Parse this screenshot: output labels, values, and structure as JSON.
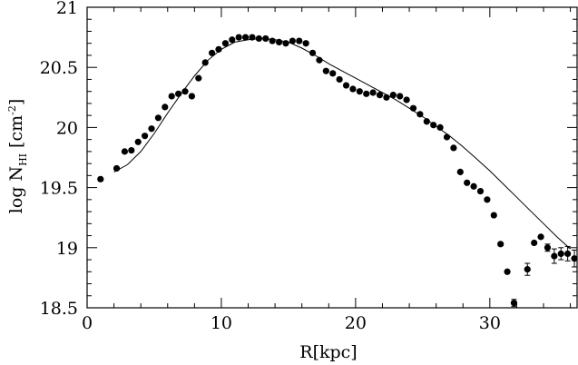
{
  "chart_data": {
    "type": "scatter",
    "xlabel": "R[kpc]",
    "ylabel": {
      "main": "log N",
      "subscript": "HI",
      "unit_open": "[cm",
      "exponent": "-2",
      "unit_close": "]"
    },
    "xlim": [
      0,
      36.5
    ],
    "ylim": [
      18.5,
      21
    ],
    "xticks": [
      0,
      10,
      20,
      30
    ],
    "yticks": [
      18.5,
      19,
      19.5,
      20,
      20.5,
      21
    ],
    "ytick_labels": [
      "18.5",
      "19",
      "19.5",
      "20",
      "20.5",
      "21"
    ],
    "grid": false,
    "colors": {
      "points": "#000000",
      "line": "#000000",
      "axes": "#000000"
    },
    "series": [
      {
        "kind": "points",
        "x": [
          1.0,
          2.2,
          2.8,
          3.3,
          3.8,
          4.3,
          4.8,
          5.3,
          5.8,
          6.3,
          6.8,
          7.3,
          7.8,
          8.3,
          8.8,
          9.3,
          9.8,
          10.3,
          10.8,
          11.3,
          11.8,
          12.3,
          12.8,
          13.3,
          13.8,
          14.3,
          14.8,
          15.3,
          15.8,
          16.3,
          16.8,
          17.3,
          17.8,
          18.3,
          18.8,
          19.3,
          19.8,
          20.3,
          20.8,
          21.3,
          21.8,
          22.3,
          22.8,
          23.3,
          23.8,
          24.3,
          24.8,
          25.3,
          25.8,
          26.3,
          26.8,
          27.3,
          27.8,
          28.3,
          28.8,
          29.3,
          29.8,
          30.3,
          30.8,
          31.3,
          31.8,
          32.8,
          33.3,
          33.8,
          34.3,
          34.8,
          35.3,
          35.8,
          36.3
        ],
        "y": [
          19.57,
          19.66,
          19.8,
          19.81,
          19.88,
          19.93,
          19.99,
          20.08,
          20.17,
          20.26,
          20.28,
          20.3,
          20.26,
          20.41,
          20.54,
          20.62,
          20.65,
          20.7,
          20.73,
          20.75,
          20.75,
          20.75,
          20.74,
          20.74,
          20.72,
          20.71,
          20.7,
          20.72,
          20.72,
          20.7,
          20.62,
          20.56,
          20.47,
          20.45,
          20.4,
          20.35,
          20.32,
          20.3,
          20.28,
          20.29,
          20.27,
          20.25,
          20.27,
          20.26,
          20.23,
          20.16,
          20.11,
          20.05,
          20.02,
          20.0,
          19.92,
          19.83,
          19.63,
          19.54,
          19.51,
          19.47,
          19.4,
          19.27,
          19.03,
          18.8,
          18.54,
          18.82,
          19.04,
          19.09,
          19.0,
          18.93,
          18.95,
          18.95,
          18.91
        ],
        "yerr": [
          0,
          0,
          0,
          0,
          0,
          0,
          0,
          0,
          0,
          0,
          0,
          0,
          0,
          0,
          0,
          0,
          0,
          0,
          0,
          0,
          0,
          0,
          0,
          0,
          0,
          0,
          0,
          0,
          0,
          0,
          0,
          0,
          0,
          0,
          0,
          0,
          0,
          0,
          0,
          0,
          0,
          0,
          0,
          0,
          0,
          0,
          0,
          0,
          0,
          0,
          0,
          0,
          0,
          0,
          0,
          0,
          0,
          0,
          0,
          0,
          0.03,
          0.05,
          0,
          0,
          0.03,
          0.06,
          0.05,
          0.06,
          0.07
        ]
      },
      {
        "kind": "line",
        "x": [
          2.0,
          3.0,
          4.0,
          5.0,
          6.0,
          7.0,
          8.0,
          9.0,
          10.0,
          11.0,
          12.0,
          13.0,
          14.0,
          15.0,
          16.0,
          17.0,
          18.0,
          19.0,
          20.0,
          21.0,
          22.0,
          23.0,
          24.0,
          25.0,
          26.0,
          27.0,
          28.0,
          29.0,
          30.0,
          31.0,
          32.0,
          33.0,
          34.0,
          35.0,
          36.0
        ],
        "y": [
          19.63,
          19.69,
          19.8,
          19.95,
          20.12,
          20.28,
          20.43,
          20.56,
          20.65,
          20.71,
          20.73,
          20.74,
          20.73,
          20.71,
          20.66,
          20.6,
          20.53,
          20.47,
          20.41,
          20.35,
          20.29,
          20.23,
          20.16,
          20.09,
          20.01,
          19.93,
          19.84,
          19.74,
          19.64,
          19.53,
          19.42,
          19.31,
          19.2,
          19.09,
          18.99
        ]
      }
    ]
  }
}
